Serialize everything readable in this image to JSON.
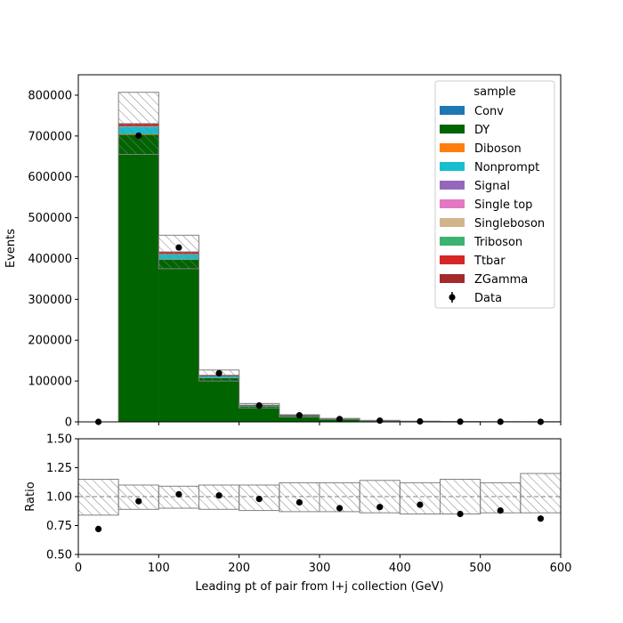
{
  "chart_data": {
    "type": "bar",
    "xlabel": "Leading pt of pair from l+j collection (GeV)",
    "top_ylabel": "Events",
    "bottom_ylabel": "Ratio",
    "xlim": [
      0,
      600
    ],
    "top_ylim": [
      0,
      850000
    ],
    "bottom_ylim": [
      0.5,
      1.5
    ],
    "x_ticks": [
      "0",
      "100",
      "200",
      "300",
      "400",
      "500",
      "600"
    ],
    "top_y_ticks": [
      "0",
      "100000",
      "200000",
      "300000",
      "400000",
      "500000",
      "600000",
      "700000",
      "800000"
    ],
    "bottom_y_ticks": [
      "0.50",
      "0.75",
      "1.00",
      "1.25",
      "1.50"
    ],
    "bin_edges": [
      0,
      50,
      100,
      150,
      200,
      250,
      300,
      350,
      400,
      450,
      500,
      550,
      600
    ],
    "legend": {
      "title": "sample",
      "placement": "upper right",
      "entries": [
        {
          "label": "Conv",
          "color": "#1f77b4",
          "kind": "patch"
        },
        {
          "label": "DY",
          "color": "#006400",
          "kind": "patch"
        },
        {
          "label": "Diboson",
          "color": "#ff7f0e",
          "kind": "patch"
        },
        {
          "label": "Nonprompt",
          "color": "#17becf",
          "kind": "patch"
        },
        {
          "label": "Signal",
          "color": "#9467bd",
          "kind": "patch"
        },
        {
          "label": "Single top",
          "color": "#e377c2",
          "kind": "patch"
        },
        {
          "label": "Singleboson",
          "color": "#d2b48c",
          "kind": "patch"
        },
        {
          "label": "Triboson",
          "color": "#3cb371",
          "kind": "patch"
        },
        {
          "label": "Ttbar",
          "color": "#d62728",
          "kind": "patch"
        },
        {
          "label": "ZGamma",
          "color": "#a52a2a",
          "kind": "patch"
        },
        {
          "label": "Data",
          "color": "#000000",
          "kind": "marker"
        }
      ]
    },
    "stack": [
      {
        "name": "DY",
        "color": "#006400",
        "values": [
          0,
          703000,
          397000,
          107000,
          38000,
          14500,
          7000,
          3000,
          1200,
          600,
          300,
          150
        ]
      },
      {
        "name": "Diboson",
        "color": "#ff7f0e",
        "values": [
          0,
          2000,
          1200,
          500,
          200,
          100,
          60,
          30,
          15,
          8,
          4,
          2
        ]
      },
      {
        "name": "Nonprompt",
        "color": "#17becf",
        "values": [
          0,
          18000,
          12000,
          4000,
          1500,
          500,
          200,
          80,
          30,
          15,
          8,
          4
        ]
      },
      {
        "name": "Singleboson",
        "color": "#d2b48c",
        "values": [
          0,
          1000,
          800,
          300,
          150,
          80,
          40,
          20,
          10,
          5,
          3,
          2
        ]
      },
      {
        "name": "Ttbar",
        "color": "#d62728",
        "values": [
          0,
          5000,
          4500,
          2000,
          800,
          300,
          120,
          50,
          20,
          10,
          5,
          3
        ]
      },
      {
        "name": "ZGamma",
        "color": "#a52a2a",
        "values": [
          0,
          1000,
          500,
          200,
          100,
          50,
          20,
          10,
          5,
          3,
          2,
          1
        ]
      }
    ],
    "uncertainty": {
      "low": [
        0,
        655000,
        375000,
        100000,
        34000,
        12000,
        6200,
        2600,
        1000,
        500,
        250,
        120
      ],
      "high": [
        0,
        807000,
        457000,
        127000,
        45000,
        17500,
        8500,
        3700,
        1500,
        800,
        400,
        200
      ]
    },
    "data_points": {
      "x": [
        25,
        75,
        125,
        175,
        225,
        275,
        325,
        375,
        425,
        475,
        525,
        575
      ],
      "y": [
        0,
        701000,
        427000,
        119000,
        40000,
        16000,
        7000,
        3000,
        1100,
        500,
        260,
        130
      ]
    },
    "ratio": {
      "x": [
        25,
        75,
        125,
        175,
        225,
        275,
        325,
        375,
        425,
        475,
        525,
        575
      ],
      "y": [
        0.72,
        0.96,
        1.02,
        1.01,
        0.98,
        0.95,
        0.9,
        0.91,
        0.93,
        0.85,
        0.88,
        0.81
      ],
      "band_low": [
        0.84,
        0.89,
        0.9,
        0.89,
        0.88,
        0.87,
        0.87,
        0.86,
        0.85,
        0.85,
        0.86,
        0.86
      ],
      "band_high": [
        1.15,
        1.1,
        1.09,
        1.1,
        1.1,
        1.12,
        1.12,
        1.14,
        1.12,
        1.15,
        1.12,
        1.2
      ],
      "reference_line": 1.0
    }
  }
}
